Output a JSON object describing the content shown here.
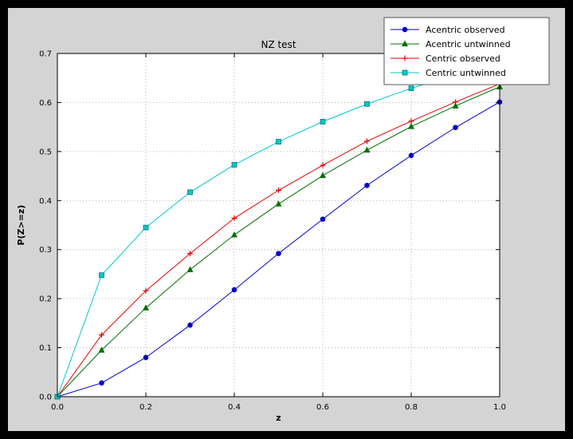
{
  "window": {
    "background": "#000000",
    "figure_background": "#d4d4d4",
    "plot_background": "#ffffff",
    "grid_color": "#b0b0b0",
    "frame_color": "#000000"
  },
  "chart_data": {
    "type": "line",
    "title": "NZ test",
    "xlabel": "z",
    "ylabel": "P(Z>=z)",
    "xlim": [
      0.0,
      1.0
    ],
    "ylim": [
      0.0,
      0.7
    ],
    "x_ticks": [
      "0.0",
      "0.2",
      "0.4",
      "0.6",
      "0.8",
      "1.0"
    ],
    "y_ticks": [
      "0.0",
      "0.1",
      "0.2",
      "0.3",
      "0.4",
      "0.5",
      "0.6",
      "0.7"
    ],
    "grid": "dotted",
    "legend_position": "upper right",
    "x": [
      0.0,
      0.1,
      0.2,
      0.3,
      0.4,
      0.5,
      0.6,
      0.7,
      0.8,
      0.9,
      1.0
    ],
    "series": [
      {
        "name": "Acentric observed",
        "color": "#0000cd",
        "marker": "circle",
        "values": [
          0.0,
          0.028,
          0.08,
          0.146,
          0.218,
          0.292,
          0.362,
          0.431,
          0.492,
          0.549,
          0.601
        ]
      },
      {
        "name": "Acentric untwinned",
        "color": "#007000",
        "marker": "triangle",
        "values": [
          0.0,
          0.095,
          0.181,
          0.259,
          0.33,
          0.393,
          0.451,
          0.503,
          0.551,
          0.593,
          0.632
        ]
      },
      {
        "name": "Centric observed",
        "color": "#e60000",
        "marker": "plus",
        "values": [
          0.0,
          0.126,
          0.216,
          0.292,
          0.364,
          0.421,
          0.472,
          0.521,
          0.562,
          0.601,
          0.638
        ]
      },
      {
        "name": "Centric untwinned",
        "color": "#00c8c8",
        "marker": "square",
        "marker_edge": "#007a7a",
        "values": [
          0.0,
          0.248,
          0.345,
          0.417,
          0.473,
          0.52,
          0.561,
          0.597,
          0.629,
          0.657,
          0.683
        ]
      }
    ]
  }
}
